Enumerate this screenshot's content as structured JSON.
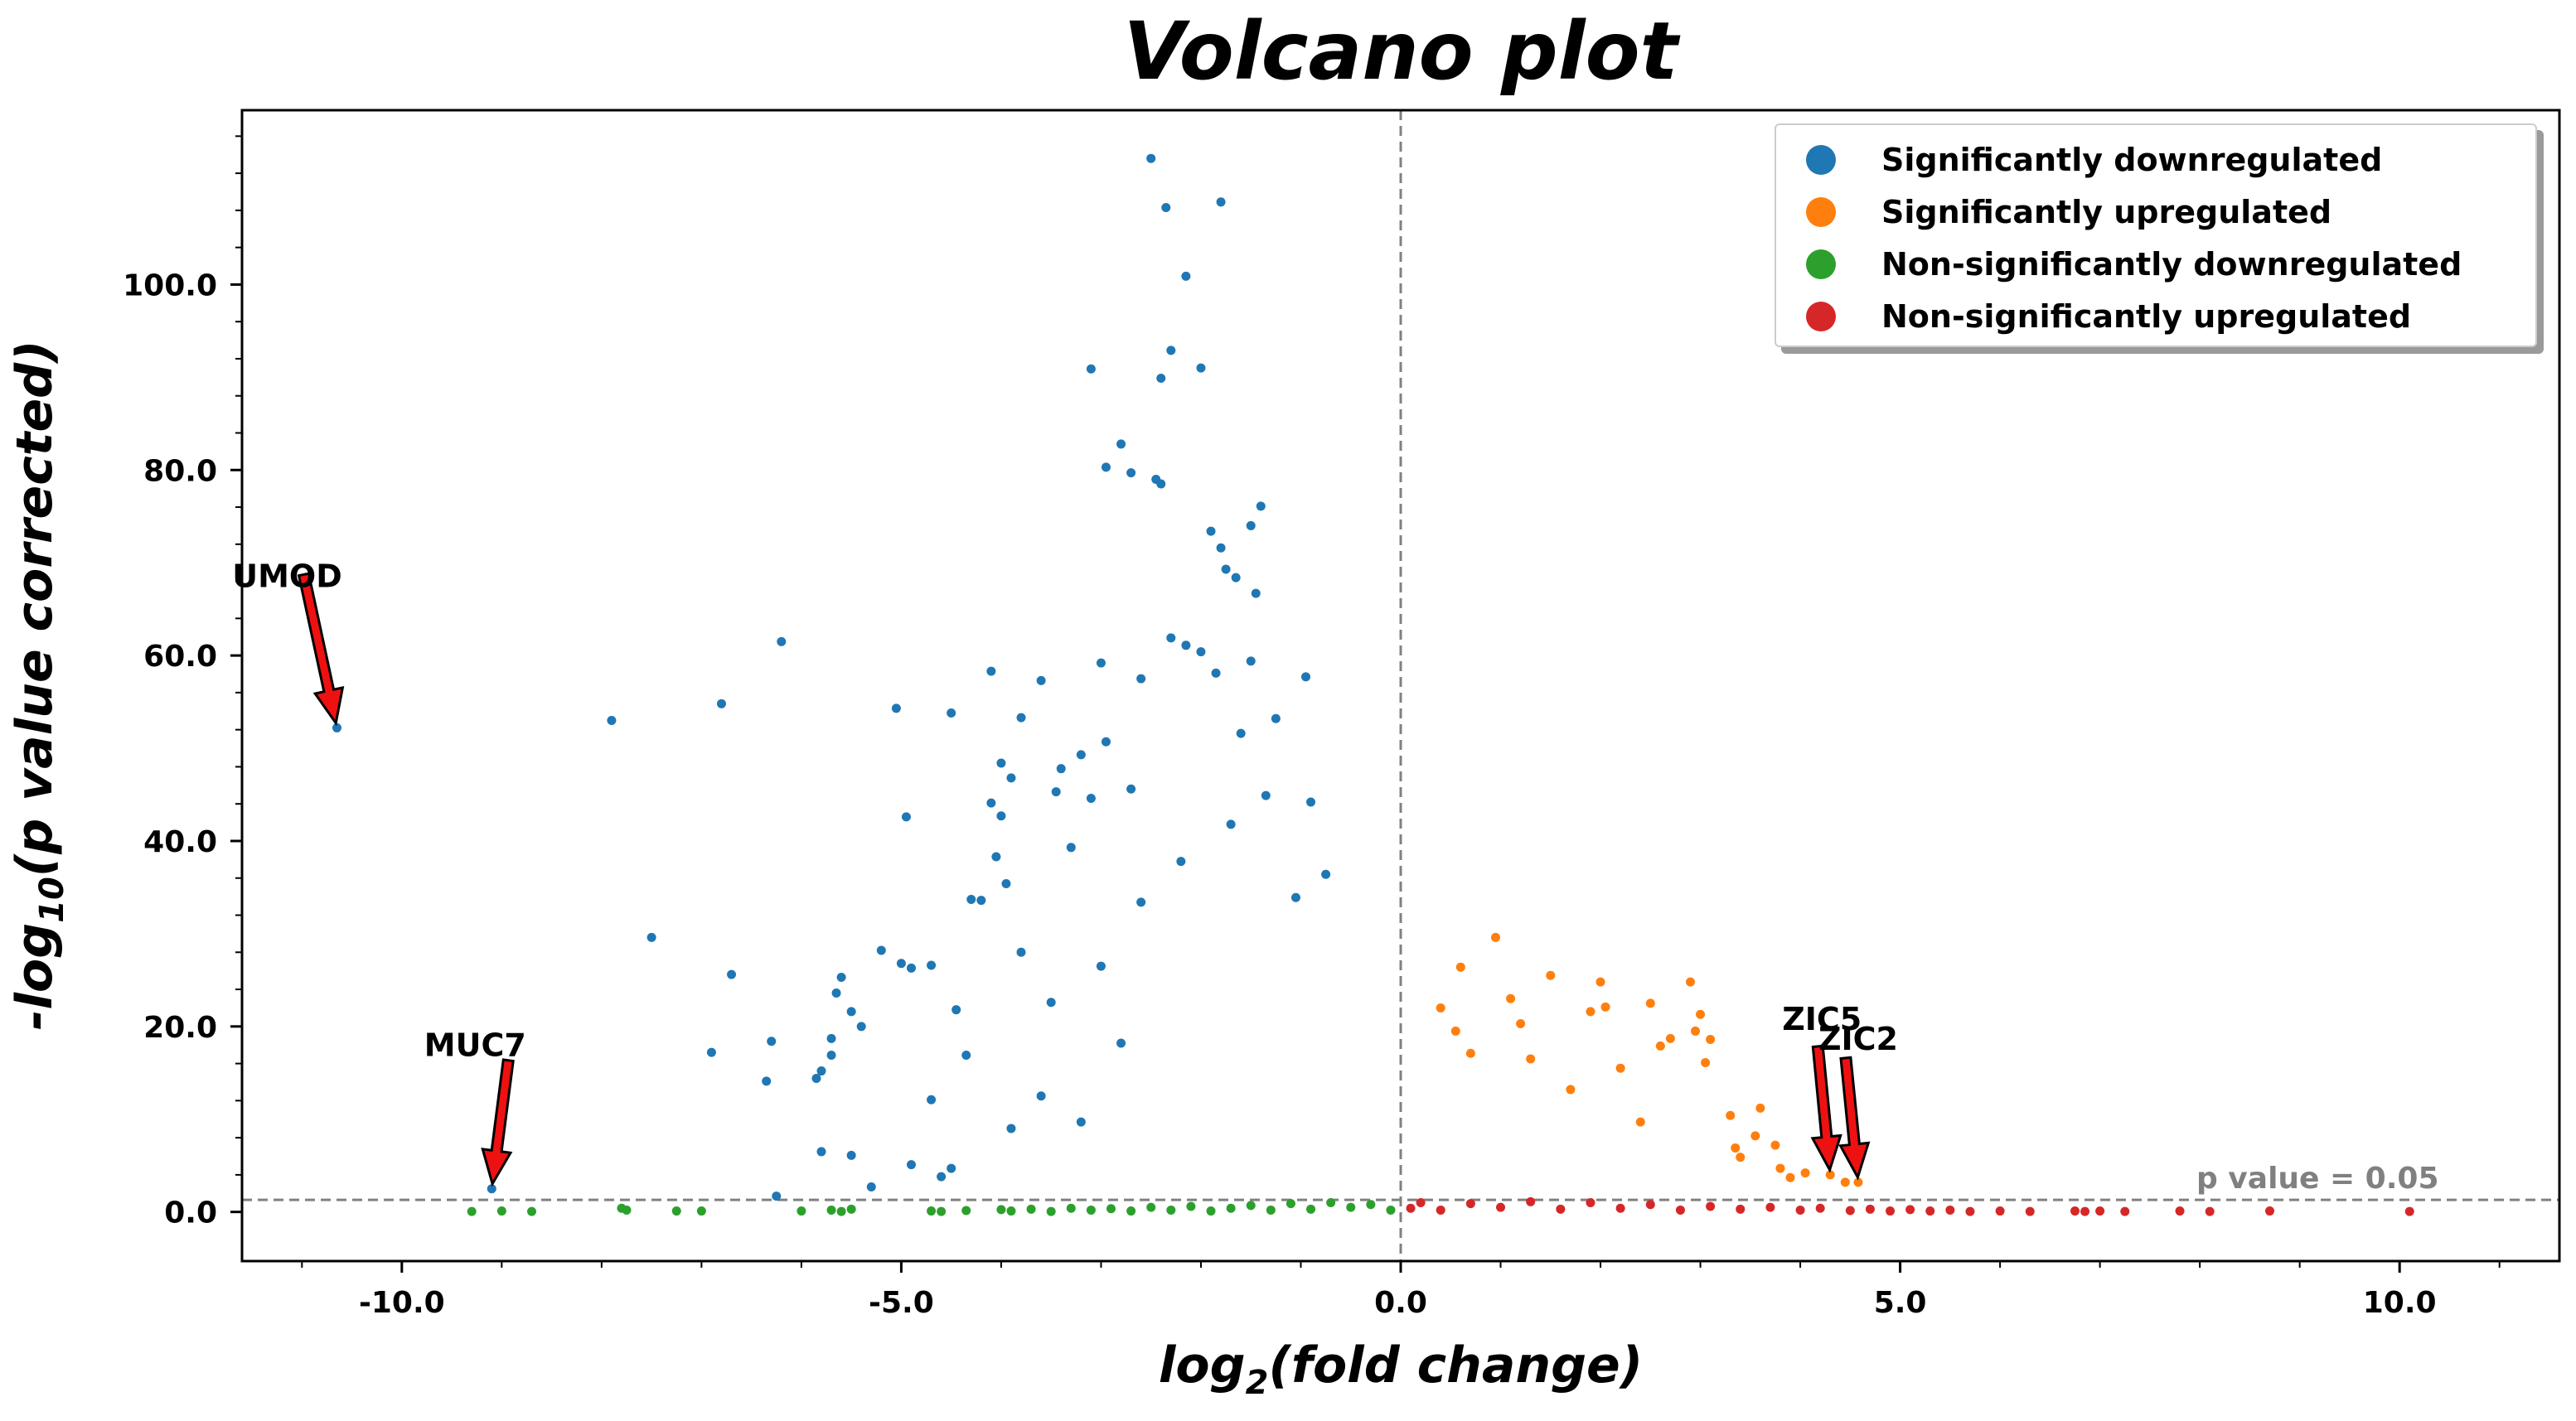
{
  "chart_data": {
    "type": "scatter",
    "title": "Volcano plot",
    "xlabel_main": "log",
    "xlabel_sub": "2",
    "xlabel_rest": "(fold change)",
    "ylabel_main": "-log",
    "ylabel_sub": "10",
    "ylabel_rest": "(p value corrected)",
    "xlim": [
      -11.6,
      11.6
    ],
    "ylim": [
      -5.3,
      118.8
    ],
    "x_ticks": [
      -10,
      -5,
      0,
      5,
      10
    ],
    "x_tick_labels": [
      "-10.0",
      "-5.0",
      "0.0",
      "5.0",
      "10.0"
    ],
    "y_ticks": [
      0,
      20,
      40,
      60,
      80,
      100
    ],
    "y_tick_labels": [
      "0.0",
      "20.0",
      "40.0",
      "60.0",
      "80.0",
      "100.0"
    ],
    "legend_position": "top-right",
    "threshold": {
      "y": 1.3,
      "label": "p value = 0.05",
      "vline_x": 0
    },
    "series": [
      {
        "name": "Significantly downregulated",
        "color": "#1f77b4",
        "points": [
          [
            -10.65,
            52.2
          ],
          [
            -9.1,
            2.5
          ],
          [
            -7.9,
            53
          ],
          [
            -7.5,
            29.6
          ],
          [
            -6.8,
            54.8
          ],
          [
            -6.7,
            25.6
          ],
          [
            -6.9,
            17.2
          ],
          [
            -6.2,
            61.5
          ],
          [
            -6.3,
            18.4
          ],
          [
            -6.35,
            14.1
          ],
          [
            -5.8,
            15.2
          ],
          [
            -5.85,
            14.4
          ],
          [
            -5.6,
            25.3
          ],
          [
            -5.65,
            23.6
          ],
          [
            -5.5,
            21.6
          ],
          [
            -5.4,
            20
          ],
          [
            -5.7,
            18.7
          ],
          [
            -5.7,
            16.9
          ],
          [
            -5.8,
            6.5
          ],
          [
            -5.5,
            6.1
          ],
          [
            -5.2,
            28.2
          ],
          [
            -5.05,
            54.3
          ],
          [
            -4.95,
            42.6
          ],
          [
            -5.0,
            26.8
          ],
          [
            -4.9,
            26.3
          ],
          [
            -4.7,
            26.6
          ],
          [
            -4.5,
            53.8
          ],
          [
            -4.45,
            21.8
          ],
          [
            -4.1,
            58.3
          ],
          [
            -4.3,
            33.7
          ],
          [
            -4.2,
            33.6
          ],
          [
            -4.0,
            48.4
          ],
          [
            -3.9,
            46.8
          ],
          [
            -3.6,
            57.3
          ],
          [
            -3.8,
            53.3
          ],
          [
            -3.4,
            47.8
          ],
          [
            -3.45,
            45.3
          ],
          [
            -3.2,
            49.3
          ],
          [
            -3.0,
            59.2
          ],
          [
            -2.95,
            50.7
          ],
          [
            -2.6,
            57.5
          ],
          [
            -2.7,
            45.6
          ],
          [
            -3.1,
            44.6
          ],
          [
            -3.3,
            39.3
          ],
          [
            -4.1,
            44.1
          ],
          [
            -4.0,
            42.7
          ],
          [
            -4.05,
            38.3
          ],
          [
            -3.95,
            35.4
          ],
          [
            -2.5,
            113.6
          ],
          [
            -2.35,
            108.3
          ],
          [
            -1.8,
            108.9
          ],
          [
            -2.15,
            100.9
          ],
          [
            -3.1,
            90.9
          ],
          [
            -2.3,
            92.9
          ],
          [
            -2.4,
            89.9
          ],
          [
            -2.0,
            91
          ],
          [
            -2.8,
            82.8
          ],
          [
            -2.95,
            80.3
          ],
          [
            -2.7,
            79.7
          ],
          [
            -2.45,
            79
          ],
          [
            -2.4,
            78.5
          ],
          [
            -1.9,
            73.4
          ],
          [
            -1.8,
            71.6
          ],
          [
            -1.4,
            76.1
          ],
          [
            -1.5,
            74
          ],
          [
            -1.75,
            69.3
          ],
          [
            -1.65,
            68.4
          ],
          [
            -1.45,
            66.7
          ],
          [
            -2.3,
            61.9
          ],
          [
            -2.15,
            61.1
          ],
          [
            -2.0,
            60.4
          ],
          [
            -1.85,
            58.1
          ],
          [
            -1.5,
            59.4
          ],
          [
            -0.95,
            57.7
          ],
          [
            -1.25,
            53.2
          ],
          [
            -1.6,
            51.6
          ],
          [
            -3.0,
            26.5
          ],
          [
            -2.8,
            18.2
          ],
          [
            -3.6,
            12.5
          ],
          [
            -3.2,
            9.7
          ],
          [
            -2.6,
            33.4
          ],
          [
            -2.2,
            37.8
          ],
          [
            -1.7,
            41.8
          ],
          [
            -1.35,
            44.9
          ],
          [
            -0.9,
            44.2
          ],
          [
            -0.75,
            36.4
          ],
          [
            -1.05,
            33.9
          ],
          [
            -3.9,
            9
          ],
          [
            -4.5,
            4.7
          ],
          [
            -4.6,
            3.8
          ],
          [
            -4.9,
            5.1
          ],
          [
            -5.3,
            2.7
          ],
          [
            -6.25,
            1.7
          ],
          [
            -4.7,
            12.1
          ],
          [
            -4.35,
            16.9
          ],
          [
            -3.8,
            28
          ],
          [
            -3.5,
            22.6
          ]
        ]
      },
      {
        "name": "Significantly upregulated",
        "color": "#ff7f0e",
        "points": [
          [
            0.95,
            29.6
          ],
          [
            0.6,
            26.4
          ],
          [
            2.0,
            24.8
          ],
          [
            2.05,
            22.1
          ],
          [
            2.9,
            24.8
          ],
          [
            3.0,
            21.3
          ],
          [
            1.5,
            25.5
          ],
          [
            2.5,
            22.5
          ],
          [
            1.9,
            21.6
          ],
          [
            2.7,
            18.7
          ],
          [
            1.2,
            20.3
          ],
          [
            2.95,
            19.5
          ],
          [
            3.1,
            18.6
          ],
          [
            2.6,
            17.9
          ],
          [
            3.05,
            16.1
          ],
          [
            3.3,
            10.4
          ],
          [
            3.55,
            8.2
          ],
          [
            3.35,
            6.9
          ],
          [
            3.75,
            7.2
          ],
          [
            3.8,
            4.7
          ],
          [
            3.4,
            5.9
          ],
          [
            3.9,
            3.7
          ],
          [
            4.05,
            4.2
          ],
          [
            4.45,
            3.2
          ],
          [
            4.3,
            4.0
          ],
          [
            4.58,
            3.2
          ],
          [
            3.6,
            11.2
          ],
          [
            2.2,
            15.5
          ],
          [
            1.7,
            13.2
          ],
          [
            2.4,
            9.7
          ],
          [
            1.3,
            16.5
          ],
          [
            0.4,
            22.0
          ],
          [
            0.55,
            19.5
          ],
          [
            0.7,
            17.1
          ],
          [
            1.1,
            23.0
          ]
        ]
      },
      {
        "name": "Non-significantly downregulated",
        "color": "#2ca02c",
        "points": [
          [
            -9.3,
            0.05
          ],
          [
            -9.0,
            0.1
          ],
          [
            -8.7,
            0.05
          ],
          [
            -7.8,
            0.4
          ],
          [
            -7.75,
            0.2
          ],
          [
            -7.25,
            0.1
          ],
          [
            -7.0,
            0.1
          ],
          [
            -6.0,
            0.1
          ],
          [
            -5.7,
            0.2
          ],
          [
            -5.6,
            0.05
          ],
          [
            -5.5,
            0.3
          ],
          [
            -4.7,
            0.1
          ],
          [
            -4.6,
            0.05
          ],
          [
            -4.35,
            0.15
          ],
          [
            -4.0,
            0.25
          ],
          [
            -3.9,
            0.1
          ],
          [
            -3.7,
            0.3
          ],
          [
            -3.5,
            0.05
          ],
          [
            -3.3,
            0.4
          ],
          [
            -3.1,
            0.2
          ],
          [
            -2.9,
            0.35
          ],
          [
            -2.7,
            0.1
          ],
          [
            -2.5,
            0.5
          ],
          [
            -2.3,
            0.2
          ],
          [
            -2.1,
            0.6
          ],
          [
            -1.9,
            0.1
          ],
          [
            -1.7,
            0.4
          ],
          [
            -1.5,
            0.7
          ],
          [
            -1.3,
            0.2
          ],
          [
            -1.1,
            0.9
          ],
          [
            -0.9,
            0.3
          ],
          [
            -0.7,
            1.0
          ],
          [
            -0.5,
            0.5
          ],
          [
            -0.3,
            0.8
          ],
          [
            -0.1,
            0.2
          ]
        ]
      },
      {
        "name": "Non-significantly upregulated",
        "color": "#d62728",
        "points": [
          [
            10.1,
            0.05
          ],
          [
            8.7,
            0.1
          ],
          [
            8.1,
            0.05
          ],
          [
            7.8,
            0.1
          ],
          [
            7.25,
            0.05
          ],
          [
            7.0,
            0.1
          ],
          [
            6.85,
            0.05
          ],
          [
            6.75,
            0.1
          ],
          [
            6.3,
            0.05
          ],
          [
            6.0,
            0.1
          ],
          [
            5.7,
            0.05
          ],
          [
            5.5,
            0.2
          ],
          [
            5.3,
            0.1
          ],
          [
            5.1,
            0.25
          ],
          [
            4.9,
            0.1
          ],
          [
            4.7,
            0.3
          ],
          [
            4.5,
            0.15
          ],
          [
            4.2,
            0.4
          ],
          [
            4.0,
            0.2
          ],
          [
            3.7,
            0.5
          ],
          [
            3.4,
            0.3
          ],
          [
            3.1,
            0.6
          ],
          [
            2.8,
            0.2
          ],
          [
            2.5,
            0.8
          ],
          [
            2.2,
            0.4
          ],
          [
            1.9,
            1.0
          ],
          [
            1.6,
            0.3
          ],
          [
            1.3,
            1.1
          ],
          [
            1.0,
            0.5
          ],
          [
            0.7,
            0.9
          ],
          [
            0.4,
            0.2
          ],
          [
            0.2,
            1.0
          ],
          [
            0.1,
            0.4
          ]
        ]
      }
    ],
    "annotations": [
      {
        "label": "UMOD",
        "x": -10.65,
        "y": 52.2
      },
      {
        "label": "MUC7",
        "x": -9.1,
        "y": 2.5
      },
      {
        "label": "ZIC5",
        "x": 4.3,
        "y": 4.0
      },
      {
        "label": "ZIC2",
        "x": 4.58,
        "y": 3.2
      }
    ]
  }
}
